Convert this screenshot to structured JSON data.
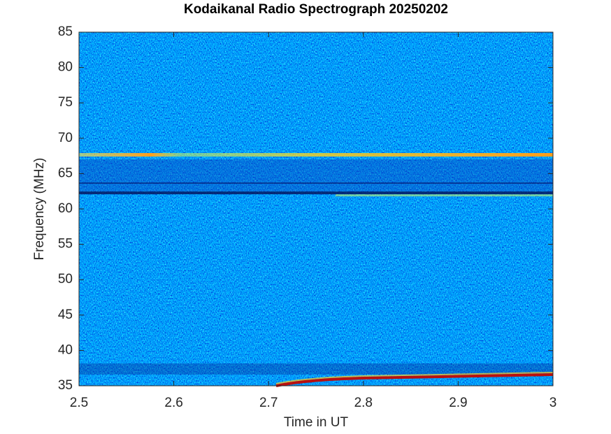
{
  "chart_data": {
    "type": "heatmap",
    "title": "Kodaikanal Radio Spectrograph  20250202",
    "xlabel": "Time in UT",
    "ylabel": "Frequency (MHz)",
    "xlim": [
      2.5,
      3
    ],
    "xticks": [
      2.5,
      2.6,
      2.7,
      2.8,
      2.9,
      3
    ],
    "ylim": [
      35,
      85
    ],
    "yticks": [
      35,
      40,
      45,
      50,
      55,
      60,
      65,
      70,
      75,
      80,
      85
    ]
  }
}
